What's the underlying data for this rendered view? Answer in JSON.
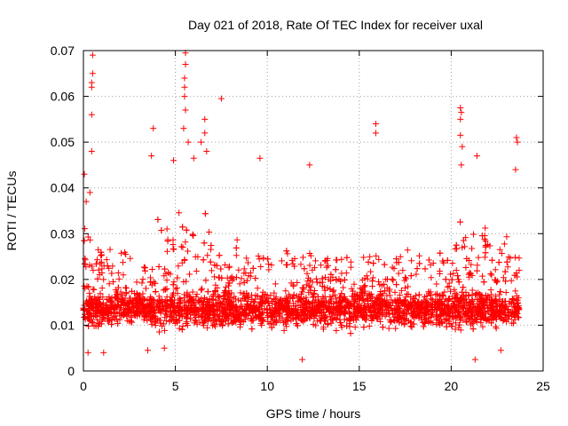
{
  "chart_data": {
    "type": "scatter",
    "title": "Day 021 of 2018, Rate Of TEC Index for receiver uxal",
    "xlabel": "GPS time / hours",
    "ylabel": "ROTI / TECUs",
    "xlim": [
      0,
      25
    ],
    "ylim": [
      0,
      0.07
    ],
    "x_ticks": [
      0,
      5,
      10,
      15,
      20,
      25
    ],
    "x_tick_labels": [
      "0",
      "5",
      "10",
      "15",
      "20",
      "25"
    ],
    "y_ticks": [
      0,
      0.01,
      0.02,
      0.03,
      0.04,
      0.05,
      0.06,
      0.07
    ],
    "y_tick_labels": [
      "0",
      "0.01",
      "0.02",
      "0.03",
      "0.04",
      "0.05",
      "0.06",
      "0.07"
    ],
    "grid": true,
    "marker": "plus",
    "marker_color": "#ff0000",
    "series": [
      {
        "name": "ROTI",
        "x_range_hours": [
          0,
          23.7
        ],
        "typical_min": 0.005,
        "typical_max": 0.035,
        "core_band": [
          0.01,
          0.025
        ],
        "outliers": [
          {
            "x": 0.5,
            "y": 0.069
          },
          {
            "x": 0.5,
            "y": 0.065
          },
          {
            "x": 0.45,
            "y": 0.063
          },
          {
            "x": 0.45,
            "y": 0.062
          },
          {
            "x": 0.45,
            "y": 0.056
          },
          {
            "x": 0.45,
            "y": 0.048
          },
          {
            "x": 0.05,
            "y": 0.043
          },
          {
            "x": 3.8,
            "y": 0.053
          },
          {
            "x": 5.55,
            "y": 0.0695
          },
          {
            "x": 5.55,
            "y": 0.067
          },
          {
            "x": 5.5,
            "y": 0.064
          },
          {
            "x": 5.5,
            "y": 0.062
          },
          {
            "x": 5.5,
            "y": 0.06
          },
          {
            "x": 5.55,
            "y": 0.057
          },
          {
            "x": 5.45,
            "y": 0.053
          },
          {
            "x": 5.7,
            "y": 0.05
          },
          {
            "x": 6.6,
            "y": 0.055
          },
          {
            "x": 6.6,
            "y": 0.052
          },
          {
            "x": 6.4,
            "y": 0.05
          },
          {
            "x": 6.7,
            "y": 0.048
          },
          {
            "x": 7.5,
            "y": 0.0595
          },
          {
            "x": 15.9,
            "y": 0.054
          },
          {
            "x": 15.9,
            "y": 0.052
          },
          {
            "x": 20.5,
            "y": 0.0575
          },
          {
            "x": 20.55,
            "y": 0.0565
          },
          {
            "x": 20.5,
            "y": 0.055
          },
          {
            "x": 20.5,
            "y": 0.0515
          },
          {
            "x": 20.6,
            "y": 0.049
          },
          {
            "x": 20.55,
            "y": 0.045
          },
          {
            "x": 21.4,
            "y": 0.047
          },
          {
            "x": 23.55,
            "y": 0.051
          },
          {
            "x": 23.6,
            "y": 0.05
          },
          {
            "x": 23.5,
            "y": 0.044
          },
          {
            "x": 12.3,
            "y": 0.045
          },
          {
            "x": 9.6,
            "y": 0.0465
          },
          {
            "x": 3.7,
            "y": 0.047
          },
          {
            "x": 0.15,
            "y": 0.037
          },
          {
            "x": 0.35,
            "y": 0.039
          },
          {
            "x": 4.9,
            "y": 0.046
          },
          {
            "x": 6.0,
            "y": 0.0465
          }
        ],
        "minima": [
          {
            "x": 0.25,
            "y": 0.004
          },
          {
            "x": 1.1,
            "y": 0.004
          },
          {
            "x": 3.5,
            "y": 0.0045
          },
          {
            "x": 4.4,
            "y": 0.005
          },
          {
            "x": 11.9,
            "y": 0.0025
          },
          {
            "x": 21.3,
            "y": 0.0025
          },
          {
            "x": 22.7,
            "y": 0.0045
          }
        ]
      }
    ]
  }
}
